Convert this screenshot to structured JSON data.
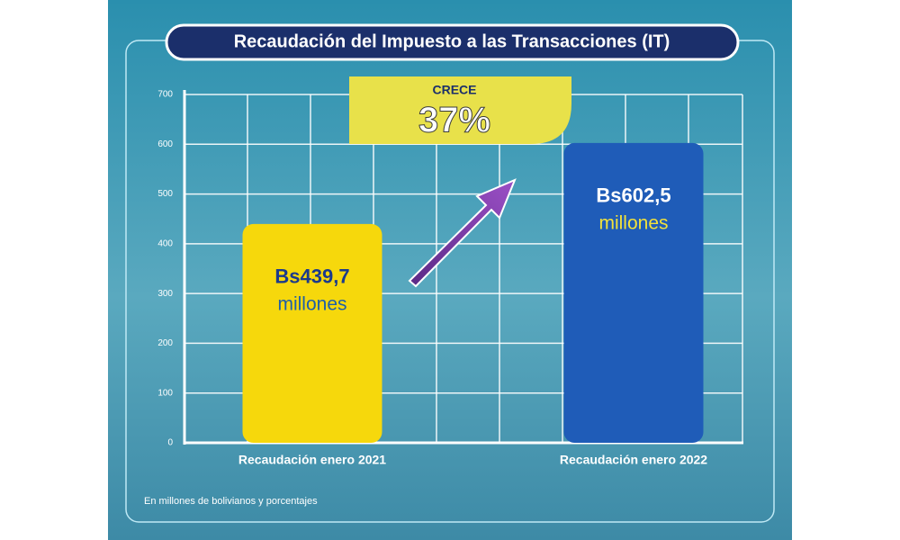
{
  "chart_data": {
    "type": "bar",
    "title": "Recaudación del Impuesto a las Transacciones (IT)",
    "categories": [
      "Recaudación enero 2021",
      "Recaudación enero 2022"
    ],
    "values": [
      439.7,
      602.5
    ],
    "value_labels": [
      "Bs439,7",
      "Bs602,5"
    ],
    "value_unit": "millones",
    "colors": [
      "#f6d80c",
      "#1f5cb8"
    ],
    "ylim": [
      0,
      700
    ],
    "yticks": [
      0,
      100,
      200,
      300,
      400,
      500,
      600,
      700
    ],
    "grid": true,
    "annotation": {
      "title": "CRECE",
      "text": "37%"
    },
    "note": "En millones de bolivianos y porcentajes"
  }
}
